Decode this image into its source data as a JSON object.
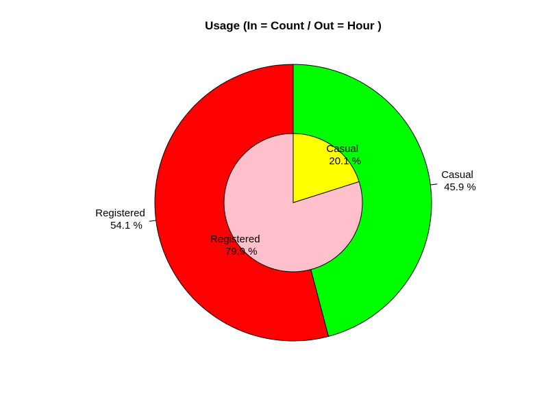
{
  "chart_data": {
    "type": "pie",
    "title": "Usage (In = Count / Out = Hour )",
    "rings": [
      {
        "ring": "outer",
        "slices": [
          {
            "label": "Casual",
            "pct_text": "45.9 %",
            "value": 45.9,
            "color": "#00ff00"
          },
          {
            "label": "Registered",
            "pct_text": "54.1 %",
            "value": 54.1,
            "color": "#ff0000"
          }
        ]
      },
      {
        "ring": "inner",
        "slices": [
          {
            "label": "Casual",
            "pct_text": "20.1 %",
            "value": 20.1,
            "color": "#ffff00"
          },
          {
            "label": "Registered",
            "pct_text": "79.9 %",
            "value": 79.9,
            "color": "#ffc0cb"
          }
        ]
      }
    ]
  }
}
